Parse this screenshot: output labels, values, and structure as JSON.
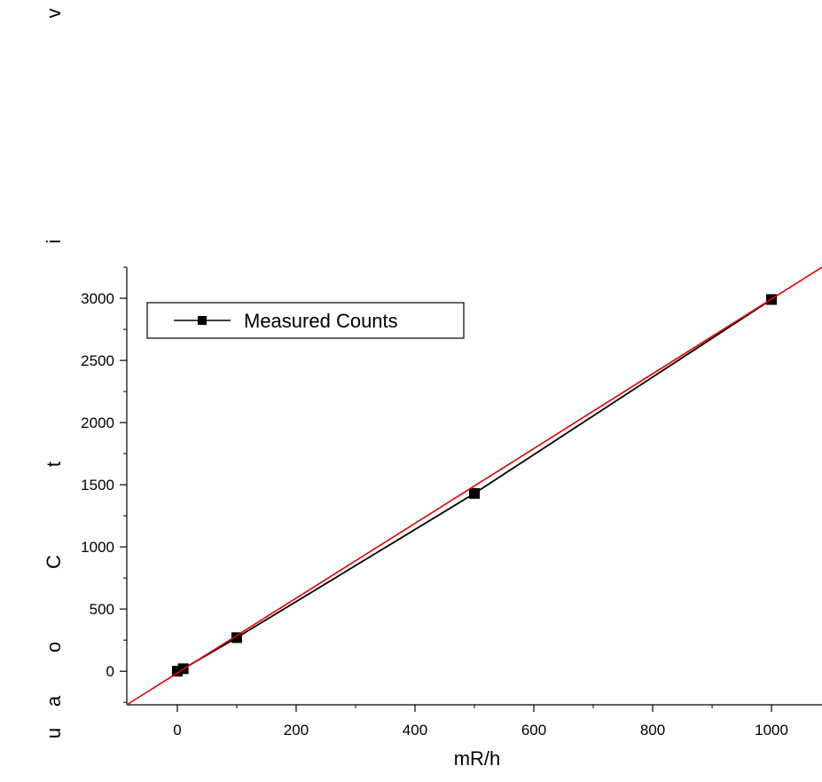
{
  "chart_data": {
    "type": "line",
    "xlabel": "mR/h",
    "ylabel_letters": [
      "u",
      "a",
      "o",
      "C",
      "t",
      "i",
      "v"
    ],
    "xlim": [
      -85,
      1085
    ],
    "ylim": [
      -270,
      3250
    ],
    "x_ticks": [
      0,
      200,
      400,
      600,
      800,
      1000
    ],
    "y_ticks": [
      0,
      500,
      1000,
      1500,
      2000,
      2500,
      3000
    ],
    "grid": false,
    "legend_position": "top-left",
    "series": [
      {
        "name": "Measured Counts",
        "color": "#000000",
        "marker": "square",
        "x": [
          0,
          10,
          100,
          500,
          1000
        ],
        "y": [
          0,
          20,
          270,
          1430,
          2990
        ]
      }
    ],
    "fit_line": {
      "color": "#e00000",
      "x": [
        -85,
        1085
      ],
      "y": [
        -270,
        3250
      ]
    }
  }
}
